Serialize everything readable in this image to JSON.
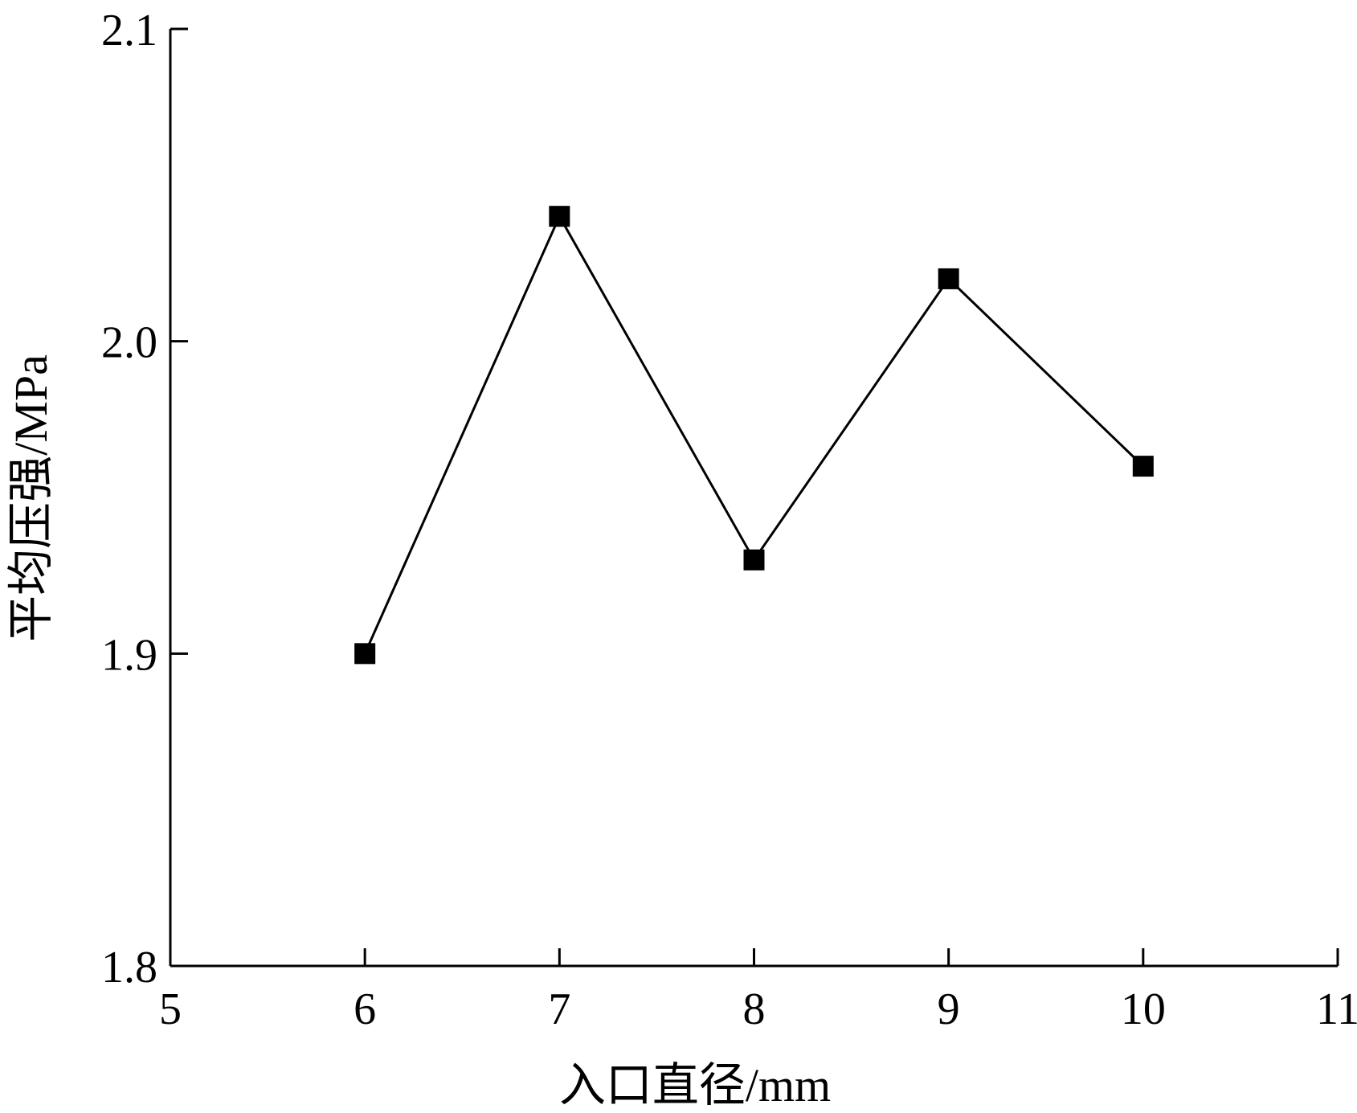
{
  "chart_data": {
    "type": "line",
    "xlabel": "入口直径/mm",
    "ylabel": "平均压强/MPa",
    "xlim": [
      5,
      11
    ],
    "ylim": [
      1.8,
      2.1
    ],
    "x_ticks": [
      "5",
      "6",
      "7",
      "8",
      "9",
      "10",
      "11"
    ],
    "y_ticks": [
      "1.8",
      "1.9",
      "2.0",
      "2.1"
    ],
    "x": [
      6,
      7,
      8,
      9,
      10
    ],
    "series": [
      {
        "values": [
          1.9,
          2.04,
          1.93,
          2.02,
          1.96
        ],
        "marker": "square",
        "color": "#000000"
      }
    ],
    "grid": false,
    "legend": "none"
  }
}
